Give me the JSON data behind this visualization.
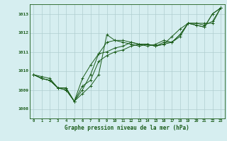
{
  "background_color": "#d6eef0",
  "grid_color": "#b0cdd0",
  "line_color": "#1a5c1a",
  "title": "Graphe pression niveau de la mer (hPa)",
  "xlim": [
    -0.5,
    23.5
  ],
  "ylim": [
    1007.5,
    1013.5
  ],
  "yticks": [
    1008,
    1009,
    1010,
    1011,
    1012,
    1013
  ],
  "xticks": [
    0,
    1,
    2,
    3,
    4,
    5,
    6,
    7,
    8,
    9,
    10,
    11,
    12,
    13,
    14,
    15,
    16,
    17,
    18,
    19,
    20,
    21,
    22,
    23
  ],
  "series": [
    [
      1009.8,
      1009.7,
      1009.6,
      1009.1,
      1009.0,
      1008.4,
      1008.8,
      1009.2,
      1009.8,
      1011.9,
      1011.6,
      1011.6,
      1011.5,
      1011.4,
      1011.3,
      1011.4,
      1011.6,
      1011.5,
      1011.9,
      1012.5,
      1012.4,
      1012.3,
      1013.0,
      1013.3
    ],
    [
      1009.8,
      1009.6,
      1009.5,
      1009.1,
      1009.1,
      1008.4,
      1009.6,
      1010.3,
      1010.9,
      1011.0,
      1011.2,
      1011.3,
      1011.5,
      1011.4,
      1011.4,
      1011.3,
      1011.4,
      1011.8,
      1012.2,
      1012.5,
      1012.5,
      1012.5,
      1012.5,
      1013.3
    ],
    [
      1009.8,
      1009.6,
      1009.5,
      1009.1,
      1009.0,
      1008.4,
      1009.0,
      1009.8,
      1010.9,
      1011.5,
      1011.6,
      1011.5,
      1011.4,
      1011.3,
      1011.4,
      1011.3,
      1011.4,
      1011.5,
      1011.9,
      1012.5,
      1012.4,
      1012.3,
      1013.0,
      1013.3
    ],
    [
      1009.8,
      1009.6,
      1009.5,
      1009.1,
      1009.1,
      1008.4,
      1009.2,
      1009.5,
      1010.5,
      1010.8,
      1011.0,
      1011.1,
      1011.3,
      1011.4,
      1011.4,
      1011.3,
      1011.5,
      1011.5,
      1011.8,
      1012.5,
      1012.5,
      1012.4,
      1012.6,
      1013.3
    ]
  ]
}
